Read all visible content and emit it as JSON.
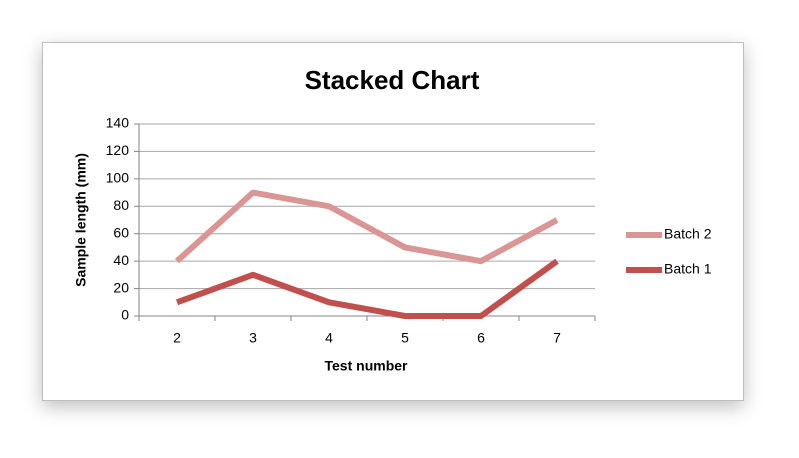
{
  "chart_data": {
    "type": "line",
    "stacked": true,
    "title": "Stacked Chart",
    "x_label": "Test number",
    "y_label": "Sample length (mm)",
    "categories": [
      "2",
      "3",
      "4",
      "5",
      "6",
      "7"
    ],
    "series": [
      {
        "name": "Batch 1",
        "color": "#c0504d",
        "values": [
          10,
          30,
          10,
          0,
          0,
          40
        ]
      },
      {
        "name": "Batch 2",
        "color": "#d99694",
        "values": [
          30,
          60,
          70,
          50,
          40,
          30
        ]
      }
    ],
    "ylim": [
      0,
      140
    ],
    "yticks": [
      0,
      20,
      40,
      60,
      80,
      100,
      120,
      140
    ],
    "grid": true,
    "legend": "right"
  }
}
